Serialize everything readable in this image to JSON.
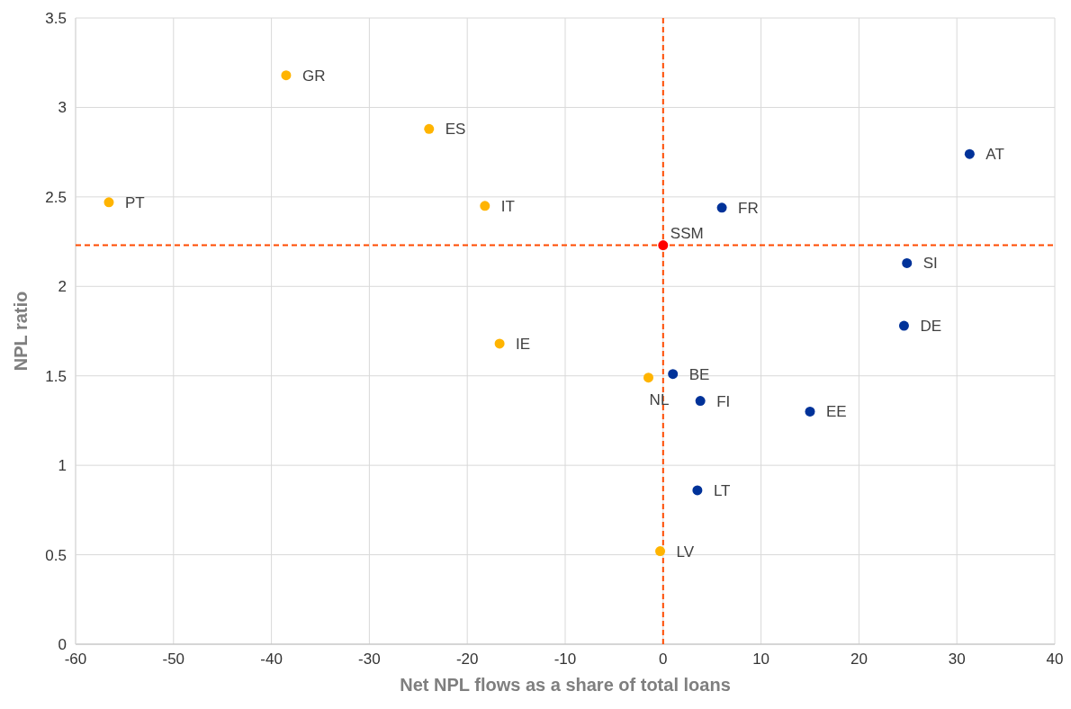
{
  "chart_data": {
    "type": "scatter",
    "xlabel": "Net NPL flows as a share of total loans",
    "ylabel": "NPL ratio",
    "xlim": [
      -60,
      40
    ],
    "xticks": [
      -60,
      -50,
      -40,
      -30,
      -20,
      -10,
      0,
      10,
      20,
      30,
      40
    ],
    "ylim": [
      0,
      3.5
    ],
    "yticks": [
      0,
      0.5,
      1,
      1.5,
      2,
      2.5,
      3,
      3.5
    ],
    "grid": true,
    "marker": "circle",
    "series": [
      {
        "color": "#ffb400",
        "x": [
          -38.5,
          -23.9,
          -56.6,
          -18.2,
          -16.7,
          -1.5,
          -0.3
        ],
        "values": [
          3.18,
          2.88,
          2.47,
          2.45,
          1.68,
          1.49,
          0.52
        ]
      },
      {
        "color": "#003299",
        "x": [
          1.0,
          3.8,
          3.5,
          6.0,
          15.0,
          24.6,
          24.9,
          31.3
        ],
        "values": [
          1.51,
          1.36,
          0.86,
          2.44,
          1.3,
          1.78,
          2.13,
          2.74
        ]
      },
      {
        "color": "#ff0000",
        "x": [
          0
        ],
        "values": [
          2.23
        ]
      }
    ],
    "ref_lines": [
      {
        "axis": "x",
        "value": 0,
        "color": "#ff4b00",
        "line_style": "dashed"
      },
      {
        "axis": "y",
        "value": 2.23,
        "color": "#ff4b00",
        "line_style": "dashed"
      }
    ],
    "annotations": [
      {
        "text": "GR",
        "x": -38.5,
        "y": 3.18
      },
      {
        "text": "ES",
        "x": -23.9,
        "y": 2.88
      },
      {
        "text": "PT",
        "x": -56.6,
        "y": 2.47
      },
      {
        "text": "IT",
        "x": -18.2,
        "y": 2.45
      },
      {
        "text": "IE",
        "x": -16.7,
        "y": 1.68
      },
      {
        "text": "NL",
        "x": -1.5,
        "y": 1.49
      },
      {
        "text": "LV",
        "x": -0.3,
        "y": 0.52
      },
      {
        "text": "BE",
        "x": 1.0,
        "y": 1.51
      },
      {
        "text": "FI",
        "x": 3.8,
        "y": 1.36
      },
      {
        "text": "LT",
        "x": 3.5,
        "y": 0.86
      },
      {
        "text": "FR",
        "x": 6.0,
        "y": 2.44
      },
      {
        "text": "EE",
        "x": 15.0,
        "y": 1.3
      },
      {
        "text": "DE",
        "x": 24.6,
        "y": 1.78
      },
      {
        "text": "SI",
        "x": 24.9,
        "y": 2.13
      },
      {
        "text": "AT",
        "x": 31.3,
        "y": 2.74
      },
      {
        "text": "SSM",
        "x": 0,
        "y": 2.23
      }
    ]
  }
}
